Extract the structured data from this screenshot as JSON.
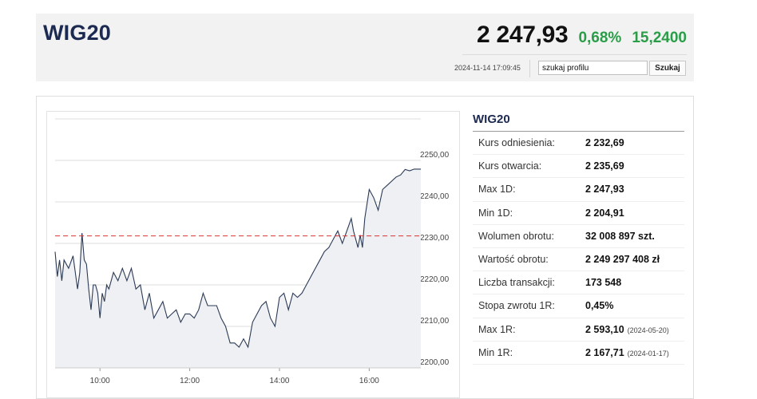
{
  "header": {
    "title": "WIG20",
    "price": "2 247,93",
    "change_pct": "0,68%",
    "change_abs": "15,2400",
    "timestamp": "2024-11-14 17:09:45",
    "search_value": "szukaj profilu",
    "search_button": "Szukaj"
  },
  "colors": {
    "title": "#1c2a52",
    "positive": "#2a9d48",
    "reference_line": "#e03030",
    "series": "#2b3a55"
  },
  "stats": {
    "title": "WIG20",
    "rows": [
      {
        "label": "Kurs odniesienia:",
        "value": "2 232,69",
        "date": ""
      },
      {
        "label": "Kurs otwarcia:",
        "value": "2 235,69",
        "date": ""
      },
      {
        "label": "Max 1D:",
        "value": "2 247,93",
        "date": ""
      },
      {
        "label": "Min 1D:",
        "value": "2 204,91",
        "date": ""
      },
      {
        "label": "Wolumen obrotu:",
        "value": "32 008 897 szt.",
        "date": ""
      },
      {
        "label": "Wartość obrotu:",
        "value": "2 249 297 408 zł",
        "date": ""
      },
      {
        "label": "Liczba transakcji:",
        "value": "173 548",
        "date": ""
      },
      {
        "label": "Stopa zwrotu 1R:",
        "value": "0,45%",
        "date": ""
      },
      {
        "label": "Max 1R:",
        "value": "2 593,10",
        "date": "(2024-05-20)"
      },
      {
        "label": "Min 1R:",
        "value": "2 167,71",
        "date": "(2024-01-17)"
      }
    ]
  },
  "chart_data": {
    "type": "area",
    "ylim": [
      2200,
      2260
    ],
    "y_ticks": [
      "2250,00",
      "2240,00",
      "2230,00",
      "2220,00",
      "2210,00",
      "2200,00"
    ],
    "y_tick_values": [
      2250,
      2240,
      2230,
      2220,
      2210,
      2200
    ],
    "x_ticks": [
      "10:00",
      "12:00",
      "14:00",
      "16:00"
    ],
    "x_tick_values": [
      10,
      12,
      14,
      16
    ],
    "xlim": [
      9.0,
      17.15
    ],
    "grid": true,
    "reference_line": 2231.8,
    "series": [
      {
        "x": [
          9.0,
          9.05,
          9.1,
          9.15,
          9.2,
          9.3,
          9.4,
          9.5,
          9.55,
          9.6,
          9.65,
          9.7,
          9.75,
          9.8,
          9.85,
          9.9,
          9.95,
          10.0,
          10.05,
          10.1,
          10.15,
          10.2,
          10.3,
          10.4,
          10.5,
          10.6,
          10.7,
          10.8,
          10.9,
          11.0,
          11.1,
          11.2,
          11.3,
          11.4,
          11.5,
          11.6,
          11.7,
          11.8,
          11.9,
          12.0,
          12.1,
          12.2,
          12.3,
          12.4,
          12.5,
          12.6,
          12.7,
          12.8,
          12.9,
          13.0,
          13.1,
          13.2,
          13.3,
          13.4,
          13.5,
          13.6,
          13.7,
          13.8,
          13.9,
          14.0,
          14.1,
          14.2,
          14.3,
          14.4,
          14.5,
          14.6,
          14.7,
          14.8,
          14.9,
          15.0,
          15.1,
          15.2,
          15.3,
          15.4,
          15.5,
          15.6,
          15.65,
          15.7,
          15.75,
          15.8,
          15.85,
          15.9,
          16.0,
          16.1,
          16.2,
          16.3,
          16.4,
          16.5,
          16.6,
          16.7,
          16.8,
          16.9,
          17.0,
          17.1,
          17.15
        ],
        "y": [
          2228,
          2222,
          2226,
          2221,
          2226,
          2224,
          2227,
          2219,
          2223,
          2232.5,
          2226,
          2225,
          2219,
          2214,
          2220,
          2220,
          2218,
          2212,
          2218,
          2216,
          2220,
          2219,
          2223,
          2221,
          2224,
          2221,
          2224,
          2219,
          2220,
          2214,
          2218,
          2212,
          2214,
          2216,
          2212,
          2213,
          2214,
          2211,
          2213,
          2213,
          2212,
          2214,
          2218,
          2215,
          2215,
          2215,
          2212,
          2210,
          2206,
          2206,
          2205,
          2207,
          2205,
          2211,
          2213,
          2215,
          2216,
          2212,
          2210,
          2217,
          2218,
          2214,
          2218,
          2217,
          2218,
          2220,
          2222,
          2224,
          2226,
          2228,
          2229,
          2231,
          2233,
          2230,
          2233,
          2236,
          2233,
          2231,
          2229,
          2232,
          2229,
          2236,
          2243,
          2241,
          2238,
          2243,
          2244,
          2245,
          2246,
          2246.5,
          2247.8,
          2247.5,
          2247.9,
          2247.9,
          2247.9
        ]
      }
    ]
  }
}
